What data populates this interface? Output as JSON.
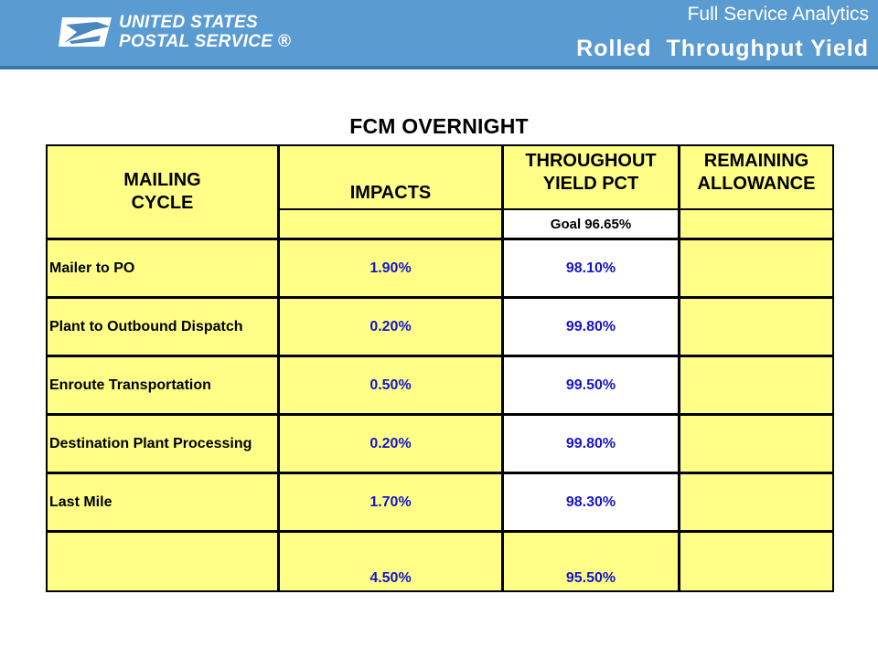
{
  "header": {
    "logo_line1": "UNITED STATES",
    "logo_line2": "POSTAL SERVICE ®",
    "subtitle": "Full Service Analytics",
    "title": "Rolled  Throughput Yield"
  },
  "table": {
    "title": "FCM OVERNIGHT",
    "columns": {
      "cycle": "MAILING\nCYCLE",
      "impacts": "IMPACTS",
      "yield": "THROUGHOUT\nYIELD PCT",
      "remaining": "REMAINING\nALLOWANCE"
    },
    "goal": "Goal 96.65%",
    "rows": [
      {
        "label": "Mailer to PO",
        "impact": "1.90%",
        "yield": "98.10%",
        "remaining": ""
      },
      {
        "label": "Plant to Outbound Dispatch",
        "impact": "0.20%",
        "yield": "99.80%",
        "remaining": ""
      },
      {
        "label": "Enroute Transportation",
        "impact": "0.50%",
        "yield": "99.50%",
        "remaining": ""
      },
      {
        "label": "Destination Plant Processing",
        "impact": "0.20%",
        "yield": "99.80%",
        "remaining": ""
      },
      {
        "label": "Last Mile",
        "impact": "1.70%",
        "yield": "98.30%",
        "remaining": ""
      }
    ],
    "total": {
      "label": "",
      "impact": "4.50%",
      "yield": "95.50%",
      "remaining": ""
    }
  },
  "colors": {
    "header_blue": "#5a9bd2",
    "cell_yellow": "#ffff88",
    "value_blue": "#1515c8"
  }
}
